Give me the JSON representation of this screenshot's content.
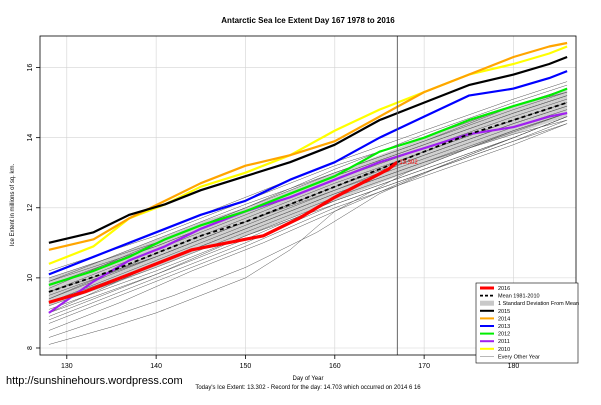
{
  "chart_data": {
    "type": "line",
    "title": "Antarctic Sea Ice Extent Day 167 1978 to 2016",
    "xlabel": "Day of Year",
    "ylabel": "Ice Extent in millions of sq. km.",
    "xlim": [
      127,
      187
    ],
    "ylim": [
      7.8,
      16.9
    ],
    "x_ticks": [
      130,
      140,
      150,
      160,
      170,
      180
    ],
    "y_ticks": [
      8,
      10,
      12,
      14,
      16
    ],
    "grid": true,
    "vline_day": 167,
    "legend_position": "bottom-right",
    "current_label": "13.302",
    "current_point": {
      "x": 167,
      "y": 13.302
    },
    "legend": [
      {
        "label": "2016",
        "color": "#ff0000",
        "style": "thick"
      },
      {
        "label": "Mean 1981-2010",
        "color": "#000000",
        "style": "dashed"
      },
      {
        "label": "1 Standard Deviation From Mean",
        "color": "#c8c8c8",
        "style": "band"
      },
      {
        "label": "2015",
        "color": "#000000",
        "style": "solid"
      },
      {
        "label": "2014",
        "color": "#ffa500",
        "style": "solid"
      },
      {
        "label": "2013",
        "color": "#0000ff",
        "style": "solid"
      },
      {
        "label": "2012",
        "color": "#00ee00",
        "style": "solid"
      },
      {
        "label": "2011",
        "color": "#a020f0",
        "style": "solid"
      },
      {
        "label": "2010",
        "color": "#ffff00",
        "style": "solid"
      },
      {
        "label": "Every Other Year",
        "color": "#888888",
        "style": "thin"
      }
    ],
    "mean": {
      "x": [
        128,
        135,
        140,
        145,
        150,
        155,
        160,
        165,
        170,
        175,
        180,
        186
      ],
      "y": [
        9.6,
        10.2,
        10.7,
        11.2,
        11.6,
        12.1,
        12.6,
        13.1,
        13.6,
        14.1,
        14.5,
        15.0
      ]
    },
    "std_band": {
      "x": [
        128,
        135,
        140,
        145,
        150,
        155,
        160,
        165,
        170,
        175,
        180,
        186
      ],
      "lower": [
        9.2,
        9.8,
        10.3,
        10.8,
        11.2,
        11.7,
        12.2,
        12.7,
        13.2,
        13.7,
        14.1,
        14.6
      ],
      "upper": [
        10.0,
        10.6,
        11.1,
        11.6,
        12.0,
        12.5,
        13.0,
        13.5,
        14.0,
        14.5,
        14.9,
        15.4
      ]
    },
    "series": [
      {
        "name": "2016",
        "color": "#ff0000",
        "width": 3.2,
        "x": [
          128,
          132,
          136,
          140,
          144,
          148,
          152,
          156,
          160,
          163,
          166,
          167
        ],
        "y": [
          9.3,
          9.6,
          10.0,
          10.4,
          10.8,
          11.0,
          11.2,
          11.7,
          12.3,
          12.7,
          13.1,
          13.302
        ]
      },
      {
        "name": "2015",
        "color": "#000000",
        "width": 2.2,
        "x": [
          128,
          133,
          137,
          141,
          145,
          150,
          155,
          160,
          165,
          170,
          175,
          180,
          184,
          186
        ],
        "y": [
          11.0,
          11.3,
          11.8,
          12.1,
          12.5,
          12.9,
          13.3,
          13.8,
          14.5,
          15.0,
          15.5,
          15.8,
          16.1,
          16.3
        ]
      },
      {
        "name": "2014",
        "color": "#ffa500",
        "width": 2.2,
        "x": [
          128,
          133,
          137,
          141,
          145,
          150,
          155,
          160,
          165,
          170,
          175,
          180,
          184,
          186
        ],
        "y": [
          10.8,
          11.1,
          11.7,
          12.2,
          12.7,
          13.2,
          13.5,
          13.9,
          14.6,
          15.3,
          15.8,
          16.3,
          16.6,
          16.7
        ]
      },
      {
        "name": "2013",
        "color": "#0000ff",
        "width": 2.2,
        "x": [
          128,
          133,
          137,
          141,
          145,
          150,
          155,
          160,
          165,
          170,
          175,
          180,
          184,
          186
        ],
        "y": [
          10.1,
          10.6,
          11.0,
          11.4,
          11.8,
          12.2,
          12.8,
          13.3,
          14.0,
          14.6,
          15.2,
          15.4,
          15.7,
          15.9
        ]
      },
      {
        "name": "2012",
        "color": "#00ee00",
        "width": 2.2,
        "x": [
          128,
          133,
          137,
          141,
          145,
          150,
          155,
          160,
          165,
          170,
          175,
          180,
          184,
          186
        ],
        "y": [
          9.8,
          10.2,
          10.6,
          11.1,
          11.5,
          11.9,
          12.4,
          12.9,
          13.6,
          14.0,
          14.5,
          14.9,
          15.2,
          15.4
        ]
      },
      {
        "name": "2011",
        "color": "#a020f0",
        "width": 2.2,
        "x": [
          128,
          133,
          137,
          141,
          145,
          150,
          155,
          160,
          165,
          170,
          175,
          180,
          184,
          186
        ],
        "y": [
          9.0,
          9.9,
          10.5,
          10.9,
          11.4,
          11.9,
          12.3,
          12.8,
          13.3,
          13.7,
          14.1,
          14.3,
          14.6,
          14.7
        ]
      },
      {
        "name": "2010",
        "color": "#ffff00",
        "width": 2.2,
        "x": [
          128,
          133,
          137,
          141,
          145,
          150,
          155,
          160,
          165,
          170,
          175,
          180,
          184,
          186
        ],
        "y": [
          10.4,
          10.9,
          11.7,
          12.1,
          12.6,
          13.0,
          13.5,
          14.2,
          14.8,
          15.3,
          15.8,
          16.1,
          16.4,
          16.6
        ]
      }
    ],
    "other_years": [
      {
        "x": [
          128,
          140,
          150,
          160,
          170,
          180,
          186
        ],
        "y": [
          9.3,
          10.5,
          11.5,
          12.5,
          13.4,
          14.3,
          14.8
        ]
      },
      {
        "x": [
          128,
          140,
          150,
          160,
          170,
          180,
          186
        ],
        "y": [
          9.6,
          10.8,
          11.8,
          12.8,
          13.7,
          14.6,
          15.1
        ]
      },
      {
        "x": [
          128,
          140,
          150,
          160,
          170,
          180,
          186
        ],
        "y": [
          9.9,
          11.1,
          12.1,
          13.0,
          13.9,
          14.8,
          15.3
        ]
      },
      {
        "x": [
          128,
          140,
          150,
          160,
          170,
          180,
          186
        ],
        "y": [
          8.9,
          10.1,
          11.1,
          12.2,
          13.1,
          14.0,
          14.6
        ]
      },
      {
        "x": [
          128,
          140,
          150,
          160,
          170,
          180,
          186
        ],
        "y": [
          9.2,
          10.3,
          11.3,
          12.3,
          13.2,
          14.2,
          14.7
        ]
      },
      {
        "x": [
          128,
          140,
          150,
          160,
          170,
          180,
          186
        ],
        "y": [
          9.8,
          10.9,
          11.9,
          12.9,
          13.8,
          14.7,
          15.2
        ]
      },
      {
        "x": [
          128,
          140,
          150,
          160,
          170,
          180,
          186
        ],
        "y": [
          10.2,
          11.2,
          12.2,
          13.2,
          14.0,
          14.9,
          15.4
        ]
      },
      {
        "x": [
          128,
          140,
          150,
          160,
          170,
          180,
          186
        ],
        "y": [
          9.0,
          10.4,
          11.4,
          12.4,
          13.3,
          14.1,
          14.5
        ]
      },
      {
        "x": [
          128,
          140,
          150,
          160,
          170,
          180,
          186
        ],
        "y": [
          9.5,
          10.6,
          11.6,
          12.6,
          13.5,
          14.4,
          14.9
        ]
      },
      {
        "x": [
          128,
          140,
          150,
          160,
          170,
          180,
          186
        ],
        "y": [
          9.4,
          10.7,
          11.7,
          12.7,
          13.6,
          14.5,
          15.0
        ]
      },
      {
        "x": [
          128,
          140,
          150,
          160,
          170,
          180,
          186
        ],
        "y": [
          8.7,
          9.9,
          10.9,
          12.0,
          12.9,
          13.8,
          14.4
        ]
      },
      {
        "x": [
          128,
          140,
          150,
          160,
          170,
          180,
          186
        ],
        "y": [
          10.0,
          11.0,
          12.0,
          13.1,
          14.1,
          15.0,
          15.5
        ]
      },
      {
        "x": [
          128,
          140,
          150,
          160,
          170,
          180,
          186
        ],
        "y": [
          9.7,
          11.0,
          12.0,
          13.0,
          13.9,
          14.9,
          15.3
        ]
      },
      {
        "x": [
          128,
          140,
          150,
          160,
          170,
          180,
          186
        ],
        "y": [
          9.1,
          10.2,
          11.2,
          12.1,
          13.0,
          14.0,
          14.6
        ]
      },
      {
        "x": [
          128,
          140,
          150,
          160,
          170,
          180,
          186
        ],
        "y": [
          8.8,
          10.0,
          11.0,
          12.1,
          13.0,
          13.9,
          14.5
        ]
      },
      {
        "x": [
          128,
          140,
          150,
          160,
          170,
          180,
          186
        ],
        "y": [
          9.6,
          10.6,
          11.6,
          12.5,
          13.5,
          14.4,
          14.9
        ]
      },
      {
        "x": [
          128,
          140,
          150,
          160,
          170,
          180,
          186
        ],
        "y": [
          10.1,
          11.3,
          12.3,
          13.3,
          14.2,
          15.1,
          15.6
        ]
      },
      {
        "x": [
          128,
          140,
          150,
          160,
          170,
          180,
          186
        ],
        "y": [
          9.3,
          10.4,
          11.4,
          12.4,
          13.3,
          14.2,
          14.7
        ]
      },
      {
        "x": [
          128,
          135,
          140,
          150,
          155,
          160,
          170,
          180,
          186
        ],
        "y": [
          8.1,
          8.6,
          9.0,
          10.0,
          10.8,
          11.9,
          13.0,
          13.9,
          14.4
        ]
      },
      {
        "x": [
          128,
          135,
          142,
          150,
          158,
          165,
          172,
          180,
          186
        ],
        "y": [
          8.3,
          8.9,
          9.5,
          10.3,
          11.3,
          12.4,
          13.2,
          14.0,
          14.6
        ]
      },
      {
        "x": [
          128,
          136,
          144,
          152,
          160,
          168,
          176,
          186
        ],
        "y": [
          8.5,
          9.3,
          10.2,
          11.0,
          11.9,
          13.0,
          13.8,
          14.7
        ]
      },
      {
        "x": [
          128,
          140,
          150,
          160,
          170,
          180,
          186
        ],
        "y": [
          9.4,
          10.6,
          11.6,
          12.6,
          13.6,
          14.5,
          15.0
        ]
      },
      {
        "x": [
          128,
          140,
          150,
          160,
          170,
          180,
          186
        ],
        "y": [
          9.9,
          10.9,
          11.9,
          12.9,
          13.8,
          14.7,
          15.2
        ]
      },
      {
        "x": [
          128,
          140,
          150,
          160,
          170,
          180,
          186
        ],
        "y": [
          9.0,
          10.1,
          11.2,
          12.2,
          13.1,
          14.0,
          14.6
        ]
      }
    ]
  },
  "watermark": "http://sunshinehours.wordpress.com",
  "footer": "Today's Ice Extent: 13.302 - Record for the day: 14.703 which occurred on 2014 6 16"
}
